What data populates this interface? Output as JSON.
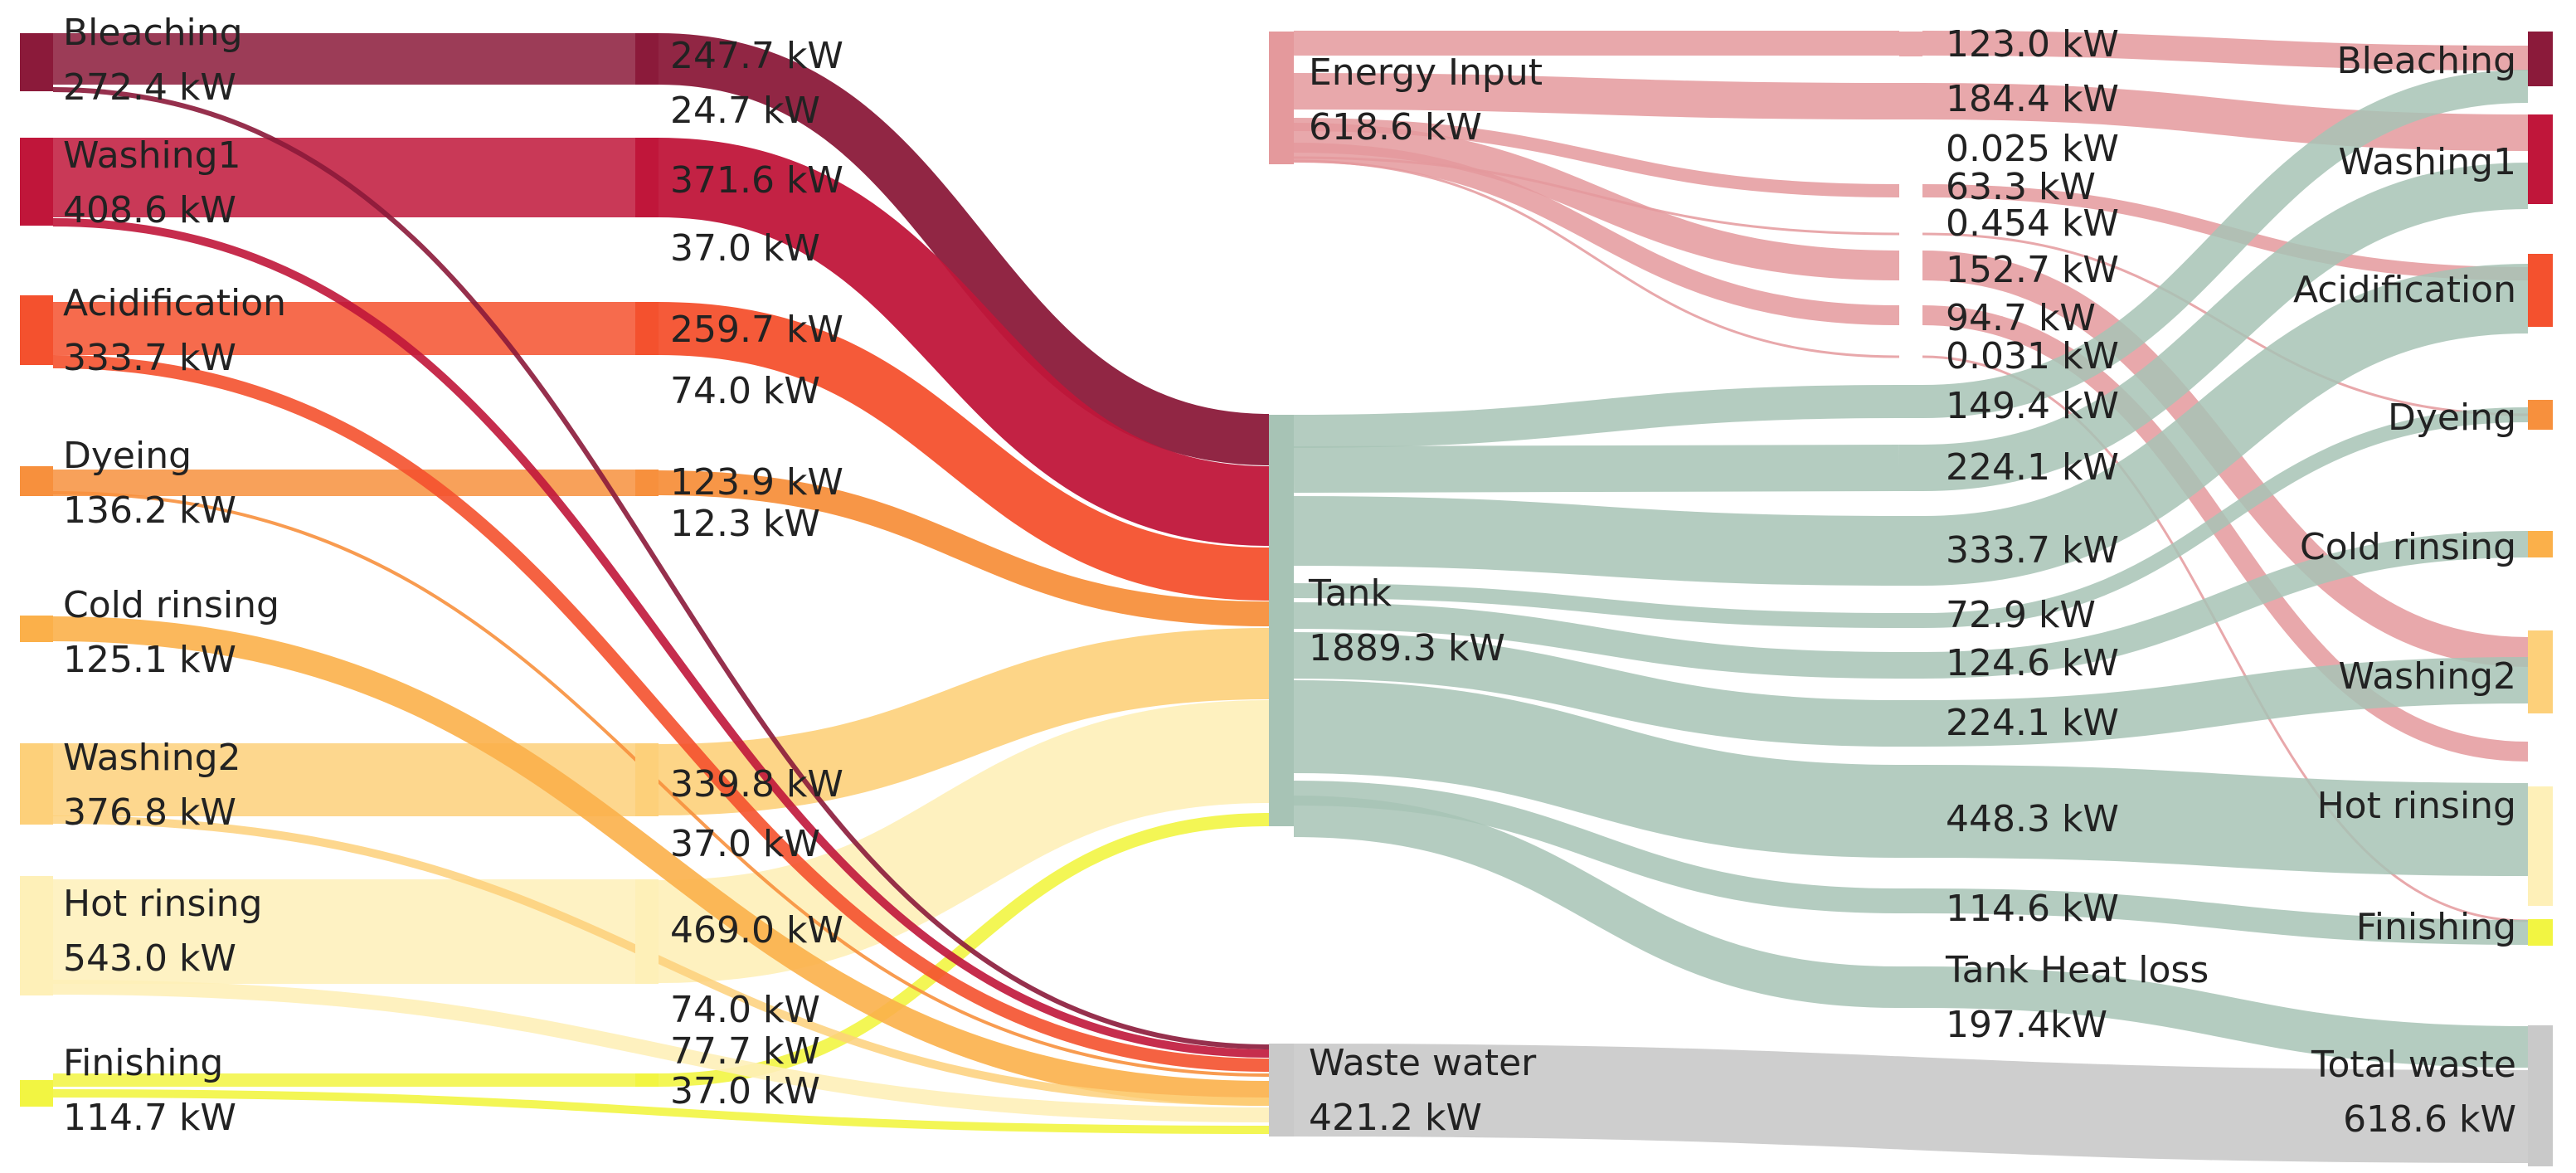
{
  "title": "",
  "colors": {
    "bleaching": "#8b1a3a",
    "washing1": "#c0163a",
    "acidification": "#f4512e",
    "dyeing": "#f7903d",
    "cold_rinsing": "#fbb04a",
    "washing2": "#fdd07a",
    "hot_rinsing": "#fef0b8",
    "finishing": "#f2f542",
    "energy": "#e4999c",
    "tank": "#a7c3b5",
    "waste": "#c9c9c9"
  },
  "left_sources": [
    {
      "name": "Bleaching",
      "value": "272.4 kW",
      "color": "bleaching"
    },
    {
      "name": "Washing1",
      "value": "408.6 kW",
      "color": "washing1"
    },
    {
      "name": "Acidification",
      "value": "333.7 kW",
      "color": "acidification"
    },
    {
      "name": "Dyeing",
      "value": "136.2 kW",
      "color": "dyeing"
    },
    {
      "name": "Cold rinsing",
      "value": "125.1 kW",
      "color": "cold_rinsing"
    },
    {
      "name": "Washing2",
      "value": "376.8 kW",
      "color": "washing2"
    },
    {
      "name": "Hot rinsing",
      "value": "543.0 kW",
      "color": "hot_rinsing"
    },
    {
      "name": "Finishing",
      "value": "114.7 kW",
      "color": "finishing"
    }
  ],
  "left_flow_labels": [
    "247.7 kW",
    "24.7 kW",
    "371.6 kW",
    "37.0 kW",
    "259.7 kW",
    "74.0 kW",
    "123.9 kW",
    "12.3 kW",
    "339.8 kW",
    "37.0 kW",
    "469.0 kW",
    "74.0 kW",
    "77.7 kW",
    "37.0 kW"
  ],
  "middle_nodes": [
    {
      "name": "Energy Input",
      "value": "618.6 kW"
    },
    {
      "name": "Tank",
      "value": "1889.3 kW"
    },
    {
      "name": "Waste water",
      "value": "421.2 kW"
    }
  ],
  "right_flow_labels": [
    "123.0 kW",
    "184.4 kW",
    "0.025 kW",
    "63.3 kW",
    "0.454 kW",
    "152.7 kW",
    "94.7 kW",
    "0.031 kW",
    "149.4 kW",
    "224.1 kW",
    "333.7 kW",
    "72.9 kW",
    "124.6 kW",
    "224.1 kW",
    "448.3 kW",
    "114.6 kW"
  ],
  "tank_heat_loss": {
    "name": "Tank Heat loss",
    "value": "197.4kW"
  },
  "right_sinks": [
    "Bleaching",
    "Washing1",
    "Acidification",
    "Dyeing",
    "Cold rinsing",
    "Washing2",
    "Hot rinsing",
    "Finishing"
  ],
  "total_waste": {
    "name": "Total waste",
    "value": "618.6 kW"
  }
}
